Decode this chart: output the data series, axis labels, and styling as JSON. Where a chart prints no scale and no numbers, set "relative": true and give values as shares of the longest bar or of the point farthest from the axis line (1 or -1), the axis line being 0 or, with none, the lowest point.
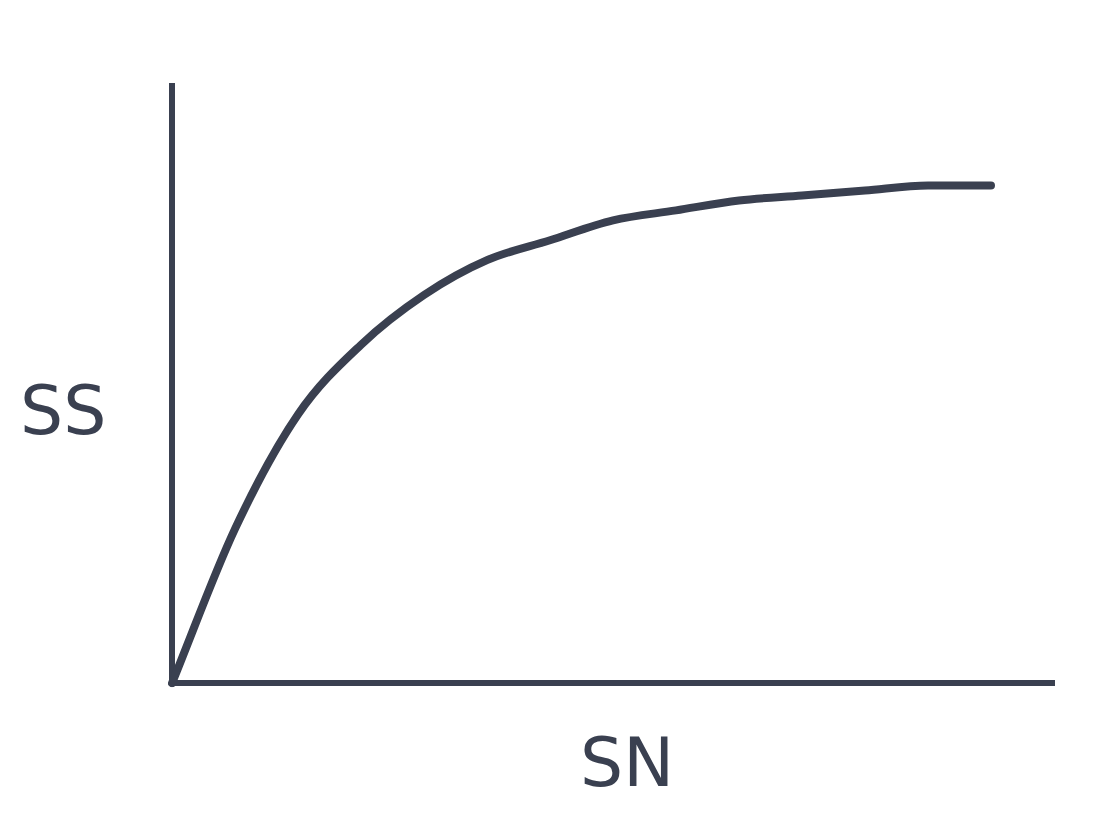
{
  "chart_data": {
    "type": "line",
    "relative": true,
    "xlabel": "SN",
    "ylabel": "SS",
    "categories": [
      null,
      null,
      null,
      null,
      null,
      null,
      null,
      null,
      null,
      null,
      null,
      null,
      null,
      null,
      null
    ],
    "series": [
      {
        "color": "#3a4050",
        "values": [
          0,
          0.31,
          0.54,
          0.68,
          0.78,
          0.85,
          0.89,
          0.93,
          0.95,
          0.97,
          0.98,
          0.99,
          1,
          1,
          null
        ]
      }
    ],
    "grid": false,
    "legend": false,
    "marker": "none",
    "line_style": "solid"
  }
}
